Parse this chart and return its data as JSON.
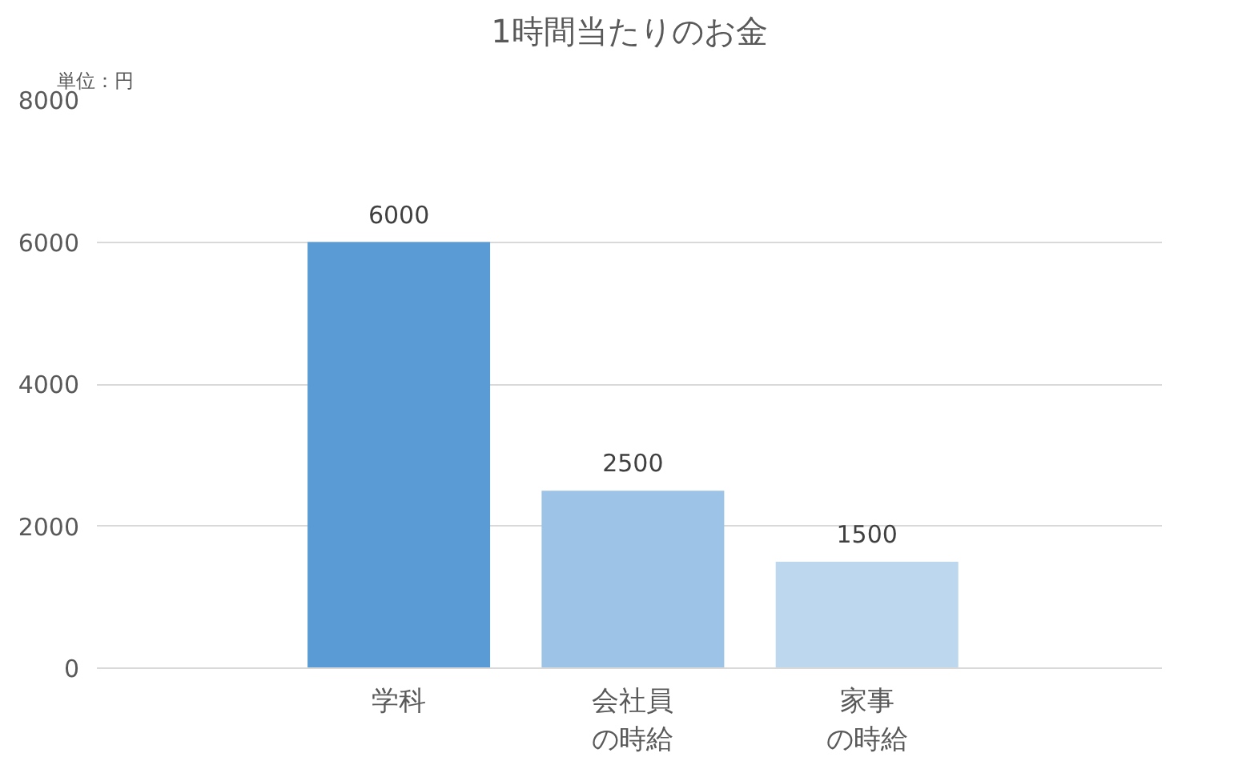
{
  "chart_data": {
    "type": "bar",
    "title": "1時間当たりのお金",
    "ylabel": "単位：円",
    "categories": [
      "学科",
      "会社員の時給",
      "家事の時給"
    ],
    "values": [
      6000,
      2500,
      1500
    ],
    "colors": [
      "#5b9bd5",
      "#9dc3e6",
      "#bdd7ee"
    ],
    "ylim": [
      0,
      8000
    ],
    "yticks": [
      0,
      2000,
      4000,
      6000,
      8000
    ],
    "grid": "y",
    "data_labels": true
  }
}
